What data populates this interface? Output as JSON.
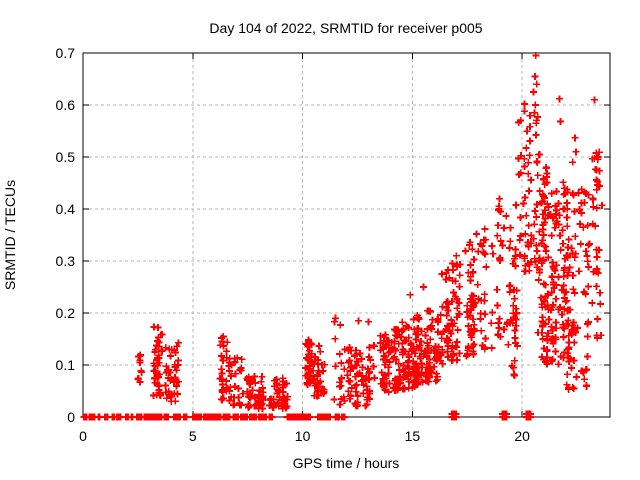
{
  "chart_data": {
    "type": "scatter",
    "title": "Day 104 of 2022, SRMTID for receiver p005",
    "xlabel": "GPS time / hours",
    "ylabel": "SRMTID / TECUs",
    "xlim": [
      0,
      24
    ],
    "ylim": [
      0,
      0.7
    ],
    "xticks": [
      0,
      5,
      10,
      15,
      20
    ],
    "xtick_labels": [
      "0",
      "5",
      "10",
      "15",
      "20"
    ],
    "yticks": [
      0,
      0.1,
      0.2,
      0.3,
      0.4,
      0.5,
      0.6,
      0.7
    ],
    "ytick_labels": [
      "0",
      "0.1",
      "0.2",
      "0.3",
      "0.4",
      "0.5",
      "0.6",
      "0.7"
    ],
    "grid": true,
    "grid_color": "#b4b4b4",
    "axis_color": "#000000",
    "legend": "none",
    "marker": {
      "symbol": "+",
      "color": "#ff0000",
      "size": 7,
      "stroke_width": 1.8
    },
    "seed": 20220104,
    "zero_line_segments": [
      [
        0.05,
        0.2
      ],
      [
        0.3,
        0.55
      ],
      [
        0.7,
        0.8
      ],
      [
        1.0,
        1.15
      ],
      [
        1.35,
        1.45
      ],
      [
        1.55,
        1.75
      ],
      [
        1.95,
        2.1
      ],
      [
        2.2,
        2.3
      ],
      [
        2.45,
        2.7
      ],
      [
        2.8,
        3.6
      ],
      [
        3.7,
        3.9
      ],
      [
        4.15,
        4.45
      ],
      [
        4.6,
        4.75
      ],
      [
        5.0,
        5.4
      ],
      [
        5.5,
        6.3
      ],
      [
        6.4,
        6.7
      ],
      [
        6.85,
        7.1
      ],
      [
        7.2,
        7.5
      ],
      [
        7.6,
        7.9
      ],
      [
        8.0,
        8.35
      ],
      [
        8.5,
        8.65
      ],
      [
        9.3,
        10.35
      ],
      [
        10.7,
        11.25
      ],
      [
        11.5,
        11.7
      ],
      [
        11.8,
        11.95
      ]
    ],
    "zero_blocks": [
      [
        16.8,
        17.0
      ],
      [
        19.1,
        19.3
      ],
      [
        20.2,
        20.4
      ]
    ],
    "clusters": [
      {
        "x0": 2.52,
        "x1": 2.68,
        "ylo": 0.065,
        "yhi": 0.125,
        "n": 10
      },
      {
        "x0": 3.2,
        "x1": 3.6,
        "ylo": 0.04,
        "yhi": 0.175,
        "n": 42
      },
      {
        "x0": 3.55,
        "x1": 4.35,
        "ylo": 0.03,
        "yhi": 0.145,
        "n": 40
      },
      {
        "x0": 6.25,
        "x1": 6.6,
        "ylo": 0.03,
        "yhi": 0.155,
        "n": 26
      },
      {
        "x0": 6.65,
        "x1": 7.3,
        "ylo": 0.02,
        "yhi": 0.115,
        "n": 30
      },
      {
        "x0": 7.45,
        "x1": 8.35,
        "ylo": 0.015,
        "yhi": 0.08,
        "n": 50
      },
      {
        "x0": 8.45,
        "x1": 9.4,
        "ylo": 0.015,
        "yhi": 0.075,
        "n": 45
      },
      {
        "x0": 10.05,
        "x1": 10.4,
        "ylo": 0.045,
        "yhi": 0.15,
        "n": 30
      },
      {
        "x0": 10.5,
        "x1": 11.25,
        "ylo": 0.04,
        "yhi": 0.15,
        "n": 36
      },
      {
        "x0": 11.4,
        "x1": 11.75,
        "ylo": 0.02,
        "yhi": 0.19,
        "n": 14
      },
      {
        "x0": 11.9,
        "x1": 13.2,
        "ylo": 0.02,
        "yhi": 0.135,
        "n": 70
      },
      {
        "x0": 13.2,
        "x1": 16.3,
        "ylo": 0.04,
        "yhi": 0.16,
        "ylo2": 0.07,
        "yhi2": 0.22,
        "n": 230
      },
      {
        "x0": 16.3,
        "x1": 18.6,
        "ylo": 0.1,
        "yhi": 0.28,
        "ylo2": 0.13,
        "yhi2": 0.38,
        "n": 145
      },
      {
        "x0": 18.6,
        "x1": 19.8,
        "ylo": 0.13,
        "yhi": 0.42,
        "n": 55
      },
      {
        "x0": 19.55,
        "x1": 19.75,
        "ylo": 0.08,
        "yhi": 0.22,
        "n": 10
      },
      {
        "x0": 19.8,
        "x1": 20.75,
        "ylo": 0.28,
        "yhi": 0.62,
        "n": 65
      },
      {
        "x0": 20.75,
        "x1": 22.0,
        "ylo": 0.1,
        "yhi": 0.48,
        "n": 150
      },
      {
        "x0": 22.0,
        "x1": 23.0,
        "ylo": 0.05,
        "yhi": 0.44,
        "n": 90
      },
      {
        "x0": 23.0,
        "x1": 23.6,
        "ylo": 0.14,
        "yhi": 0.52,
        "n": 40
      }
    ],
    "outliers": [
      [
        20.62,
        0.695
      ],
      [
        20.58,
        0.655
      ],
      [
        20.66,
        0.64
      ],
      [
        20.52,
        0.625
      ],
      [
        20.6,
        0.6
      ],
      [
        20.56,
        0.585
      ],
      [
        20.64,
        0.565
      ],
      [
        21.7,
        0.612
      ],
      [
        21.75,
        0.568
      ],
      [
        22.4,
        0.537
      ],
      [
        22.45,
        0.51
      ],
      [
        22.3,
        0.49
      ],
      [
        23.3,
        0.61
      ],
      [
        23.45,
        0.5
      ],
      [
        23.4,
        0.475
      ],
      [
        17.0,
        0.31
      ],
      [
        16.55,
        0.21
      ],
      [
        12.55,
        0.185
      ],
      [
        13.0,
        0.183
      ],
      [
        11.5,
        0.19
      ],
      [
        22.35,
        0.055
      ],
      [
        19.65,
        0.08
      ],
      [
        15.5,
        0.25
      ],
      [
        14.9,
        0.235
      ]
    ]
  }
}
